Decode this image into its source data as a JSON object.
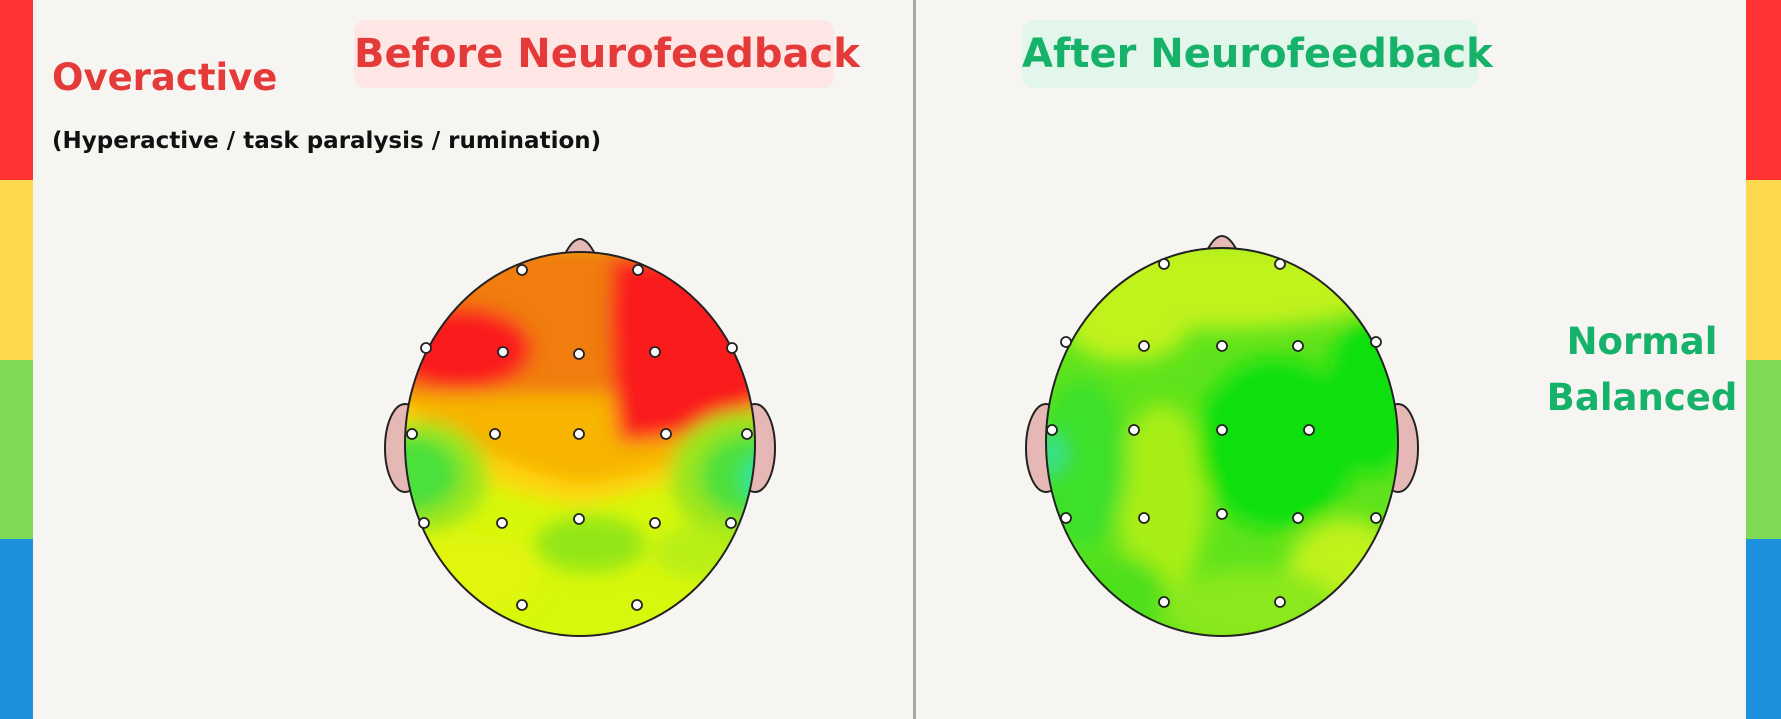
{
  "before": {
    "title": "Before Neurofeedback",
    "state_label": "Overactive",
    "state_note": "(Hyperactive / task paralysis / rumination)"
  },
  "after": {
    "title": "After Neurofeedback",
    "state_label": "Normal Balanced"
  },
  "scale_colors": [
    "#ff3333",
    "#ffd94d",
    "#7ed957",
    "#1e90dd"
  ],
  "colors": {
    "before_title_color": "#e53a3a",
    "after_title_color": "#17b26a",
    "head_outline": "#222222",
    "ear_fill": "#e6b8b5",
    "electrode_fill": "#ffffff"
  },
  "icons": {
    "head_map_icon": "eeg-topographic-head-map",
    "nose_icon": "nose-shape",
    "ear_icon": "ear-shape"
  }
}
